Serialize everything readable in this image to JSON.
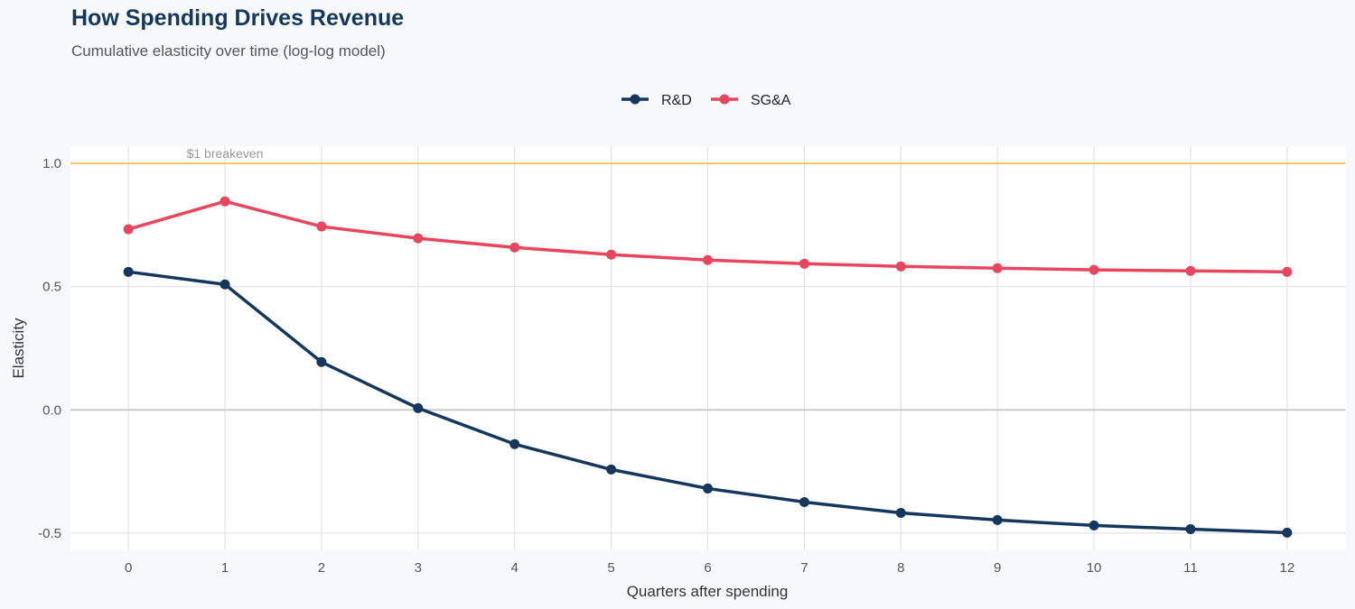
{
  "chart_data": {
    "type": "line",
    "title": "How Spending Drives Revenue",
    "subtitle": "Cumulative elasticity over time (log-log model)",
    "xlabel": "Quarters after spending",
    "ylabel": "Elasticity",
    "x": [
      0,
      1,
      2,
      3,
      4,
      5,
      6,
      7,
      8,
      9,
      10,
      11,
      12
    ],
    "xlim": [
      -0.6,
      12.6
    ],
    "ylim": [
      -0.57,
      1.07
    ],
    "yticks": [
      -0.5,
      0.0,
      0.5,
      1.0
    ],
    "ytick_labels": [
      "-0.5",
      "0.0",
      "0.5",
      "1.0"
    ],
    "grid": true,
    "legend_position": "top",
    "reference_line": {
      "y": 1.0,
      "label": "$1 breakeven",
      "color": "#f2c55c"
    },
    "series": [
      {
        "name": "R&D",
        "color": "#14375e",
        "values": [
          0.56,
          0.509,
          0.194,
          0.007,
          -0.139,
          -0.242,
          -0.319,
          -0.374,
          -0.418,
          -0.447,
          -0.469,
          -0.484,
          -0.498
        ]
      },
      {
        "name": "SG&A",
        "color": "#e8465e",
        "values": [
          0.733,
          0.846,
          0.744,
          0.696,
          0.659,
          0.63,
          0.608,
          0.593,
          0.582,
          0.575,
          0.568,
          0.564,
          0.56
        ]
      }
    ]
  }
}
